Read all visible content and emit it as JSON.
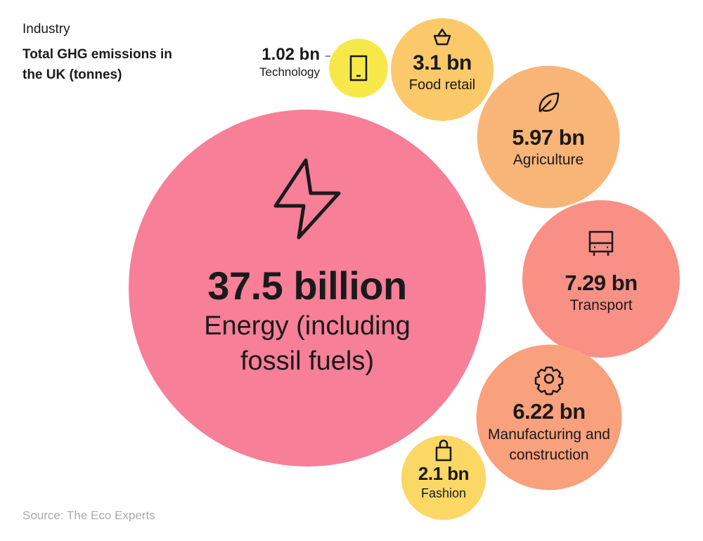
{
  "chart_data": {
    "type": "bubble",
    "title": "Industry",
    "subtitle": "Total GHG emissions in the UK (tonnes)",
    "source": "Source: The Eco Experts",
    "categories": [
      "Energy (including fossil fuels)",
      "Technology",
      "Food retail",
      "Agriculture",
      "Transport",
      "Manufacturing and construction",
      "Fashion"
    ],
    "values": [
      37.5,
      1.02,
      3.1,
      5.97,
      7.29,
      6.22,
      2.1
    ],
    "value_labels": [
      "37.5 billion",
      "1.02 bn",
      "3.1 bn",
      "5.97 bn",
      "7.29 bn",
      "6.22 bn",
      "2.1 bn"
    ],
    "colors": [
      "#f77f98",
      "#f7e84a",
      "#fbc86a",
      "#f9b577",
      "#f99086",
      "#f9a07c",
      "#fbd765"
    ]
  }
}
